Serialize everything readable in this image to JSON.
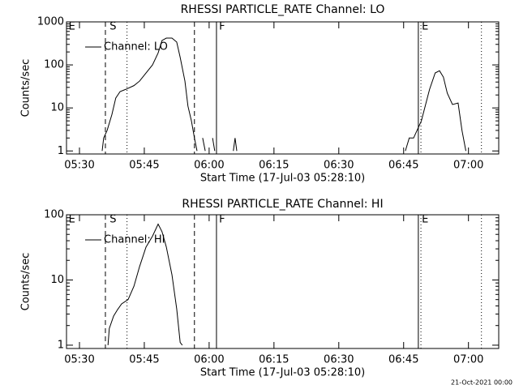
{
  "chart_data": [
    {
      "type": "line",
      "title": "RHESSI PARTICLE_RATE Channel: LO",
      "xlabel": "Start Time (17-Jul-03 05:28:10)",
      "ylabel": "Counts/sec",
      "x": [
        335.25,
        335.6,
        336.4,
        337.5,
        338.4,
        339.4,
        340.7,
        342.6,
        343.9,
        345.4,
        346.9,
        348.2,
        349.1,
        350.1,
        351.4,
        352.5,
        353.3,
        354.4,
        355.1,
        355.9,
        356.6,
        357.2,
        357.8,
        358.5,
        359.1,
        359.6,
        360.8,
        361.3,
        361.8,
        365.6,
        366,
        366.4,
        367,
        405.4,
        406.3,
        407.3,
        409.1,
        411,
        412.3,
        413.3,
        414.2,
        415.1,
        416.3,
        417.6,
        418.5,
        419.4
      ],
      "series": [
        {
          "name": "Channel: LO",
          "color": "#000000",
          "values": [
            1,
            2,
            3,
            7,
            17,
            24,
            27,
            33,
            42,
            65,
            100,
            190,
            370,
            420,
            420,
            340,
            150,
            42,
            11,
            5,
            2,
            1,
            null,
            2,
            1,
            null,
            2,
            1,
            null,
            1,
            2,
            1,
            null,
            1,
            2,
            2,
            5,
            27,
            65,
            73,
            52,
            22,
            12,
            13,
            3,
            1
          ]
        }
      ],
      "xlim": [
        327,
        427
      ],
      "xticks": [
        {
          "value": 330,
          "label": "05:30"
        },
        {
          "value": 345,
          "label": "05:45"
        },
        {
          "value": 360,
          "label": "06:00"
        },
        {
          "value": 375,
          "label": "06:15"
        },
        {
          "value": 390,
          "label": "06:30"
        },
        {
          "value": 405,
          "label": "06:45"
        },
        {
          "value": 420,
          "label": "07:00"
        }
      ],
      "ylim": [
        0.85,
        1000
      ],
      "yticks": [
        1,
        10,
        100,
        1000
      ],
      "log_y": true,
      "legend": "upper left",
      "markers": [
        {
          "x": 336,
          "style": "dashed"
        },
        {
          "x": 341,
          "style": "dotted"
        },
        {
          "x": 356.6,
          "style": "dashed"
        },
        {
          "x": 361.7,
          "style": "solid"
        },
        {
          "x": 408.4,
          "style": "solid"
        },
        {
          "x": 409,
          "style": "dotted"
        },
        {
          "x": 423,
          "style": "dotted"
        }
      ],
      "flags": [
        {
          "x": 327.5,
          "label": "E"
        },
        {
          "x": 337,
          "label": "S"
        },
        {
          "x": 362.3,
          "label": "F"
        },
        {
          "x": 409.2,
          "label": "E"
        }
      ]
    },
    {
      "type": "line",
      "title": "RHESSI PARTICLE_RATE Channel: HI",
      "xlabel": "Start Time (17-Jul-03 05:28:10)",
      "ylabel": "Counts/sec",
      "x": [
        336.6,
        336.9,
        337.9,
        338.8,
        339.75,
        341.25,
        342.6,
        343.9,
        345.4,
        346.9,
        348.2,
        349.1,
        350.1,
        351.4,
        352.5,
        353.3,
        353.8
      ],
      "series": [
        {
          "name": "Channel: HI",
          "color": "#000000",
          "values": [
            1,
            1.8,
            2.8,
            3.5,
            4.3,
            5,
            8,
            16,
            32,
            47,
            72,
            55,
            32,
            12,
            3.6,
            1.1,
            1
          ]
        }
      ],
      "xlim": [
        327,
        427
      ],
      "xticks": [
        {
          "value": 330,
          "label": "05:30"
        },
        {
          "value": 345,
          "label": "05:45"
        },
        {
          "value": 360,
          "label": "06:00"
        },
        {
          "value": 375,
          "label": "06:15"
        },
        {
          "value": 390,
          "label": "06:30"
        },
        {
          "value": 405,
          "label": "06:45"
        },
        {
          "value": 420,
          "label": "07:00"
        }
      ],
      "ylim": [
        0.89,
        100
      ],
      "yticks": [
        1,
        10,
        100
      ],
      "log_y": true,
      "legend": "upper left",
      "markers": [
        {
          "x": 336,
          "style": "dashed"
        },
        {
          "x": 341,
          "style": "dotted"
        },
        {
          "x": 356.6,
          "style": "dashed"
        },
        {
          "x": 361.7,
          "style": "solid"
        },
        {
          "x": 408.4,
          "style": "solid"
        },
        {
          "x": 409,
          "style": "dotted"
        },
        {
          "x": 423,
          "style": "dotted"
        }
      ],
      "flags": [
        {
          "x": 327.5,
          "label": "E"
        },
        {
          "x": 337,
          "label": "S"
        },
        {
          "x": 362.3,
          "label": "F"
        },
        {
          "x": 409.2,
          "label": "E"
        }
      ]
    }
  ],
  "footer": "21-Oct-2021 00:00"
}
